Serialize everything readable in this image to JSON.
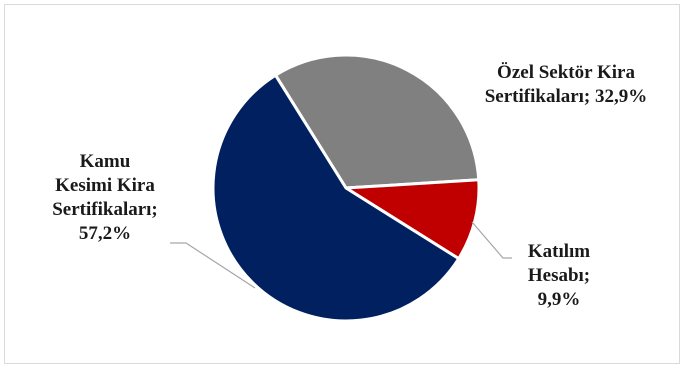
{
  "chart_data": {
    "type": "pie",
    "title": "",
    "categories": [
      "Özel Sektör Kira Sertifikaları",
      "Katılım Hesabı",
      "Kamu Kesimi Kira Sertifikaları"
    ],
    "values": [
      32.9,
      9.9,
      57.2
    ],
    "value_labels": [
      "32,9%",
      "9,9%",
      "57,2%"
    ],
    "colors": [
      "#808080",
      "#c00000",
      "#002060"
    ],
    "slice_edge_color": "#ffffff",
    "legend": "none",
    "data_labels": [
      {
        "lines": [
          "Özel Sektör Kira",
          "Sertifikaları; 32,9%"
        ]
      },
      {
        "lines": [
          "Katılım",
          "Hesabı;",
          "9,9%"
        ]
      },
      {
        "lines": [
          "Kamu",
          "Kesimi Kira",
          "Sertifikaları;",
          "57,2%"
        ]
      }
    ]
  }
}
